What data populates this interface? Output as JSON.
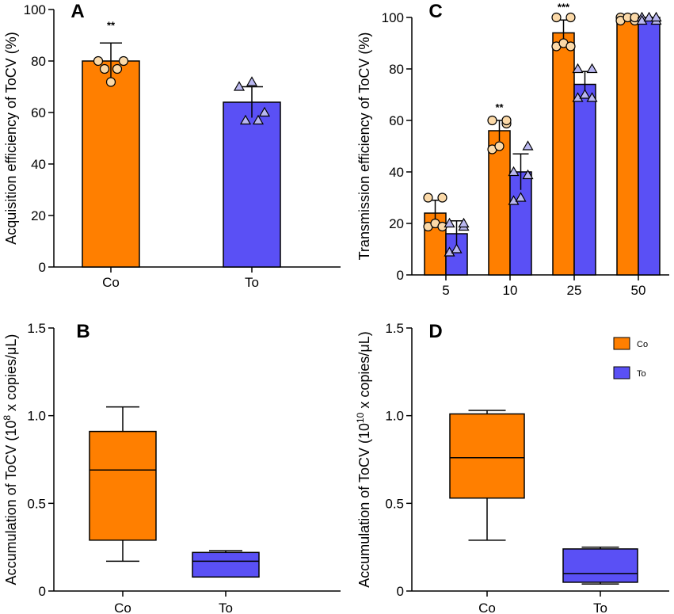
{
  "colors": {
    "co": "#ff7f00",
    "to": "#5a50f5",
    "co_point": "#fbd9a8",
    "to_point": "#b9b7f0"
  },
  "chart_data": [
    {
      "panel": "A",
      "type": "bar",
      "ylabel": "Acquisition efficiency of ToCV (%)",
      "ylim": [
        0,
        100
      ],
      "yticks": [
        "0",
        "20",
        "40",
        "60",
        "80",
        "100"
      ],
      "categories": [
        "Co",
        "To"
      ],
      "values": [
        80,
        64
      ],
      "errors": [
        7,
        6
      ],
      "points": [
        [
          70,
          80,
          80,
          80,
          80
        ],
        [
          70,
          70,
          60,
          60,
          60
        ]
      ],
      "annotations": [
        "**",
        ""
      ]
    },
    {
      "panel": "C",
      "type": "bar",
      "ylabel": "Transmission efficiency of ToCV (%)",
      "ylim": [
        0,
        100
      ],
      "yticks": [
        "0",
        "20",
        "40",
        "60",
        "80",
        "100"
      ],
      "categories": [
        "5",
        "10",
        "25",
        "50"
      ],
      "series": [
        {
          "name": "Co",
          "values": [
            24,
            56,
            94,
            100
          ],
          "errors": [
            5,
            4,
            5,
            0
          ],
          "points": [
            [
              30,
              20,
              20,
              20,
              30
            ],
            [
              60,
              50,
              50,
              60,
              60
            ],
            [
              100,
              90,
              90,
              90,
              100
            ],
            [
              100,
              100,
              100,
              100,
              100
            ]
          ]
        },
        {
          "name": "To",
          "values": [
            16,
            40,
            74,
            100
          ],
          "errors": [
            5,
            7,
            5,
            0
          ],
          "points": [
            [
              20,
              10,
              10,
              20,
              20
            ],
            [
              40,
              30,
              30,
              40,
              50
            ],
            [
              80,
              70,
              70,
              70,
              80
            ],
            [
              100,
              100,
              100,
              100,
              100
            ]
          ]
        }
      ],
      "annotations": [
        "",
        "**",
        "***",
        ""
      ]
    },
    {
      "panel": "B",
      "type": "box",
      "ylabel_prefix": "Accumulation of ToCV (10",
      "ylabel_exp": "8",
      "ylabel_suffix": " x copies/μL)",
      "ylim": [
        0,
        1.5
      ],
      "yticks": [
        "0",
        "0.5",
        "1.0",
        "1.5"
      ],
      "categories": [
        "Co",
        "To"
      ],
      "boxes": [
        {
          "min": 0.17,
          "q1": 0.29,
          "median": 0.69,
          "q3": 0.91,
          "max": 1.05
        },
        {
          "min": 0.08,
          "q1": 0.08,
          "median": 0.17,
          "q3": 0.22,
          "max": 0.23
        }
      ]
    },
    {
      "panel": "D",
      "type": "box",
      "ylabel_prefix": "Accumulation of ToCV (10",
      "ylabel_exp": "10",
      "ylabel_suffix": " x copies/μL)",
      "ylim": [
        0,
        1.5
      ],
      "yticks": [
        "0",
        "0.5",
        "1.0",
        "1.5"
      ],
      "categories": [
        "Co",
        "To"
      ],
      "boxes": [
        {
          "min": 0.29,
          "q1": 0.53,
          "median": 0.76,
          "q3": 1.01,
          "max": 1.03
        },
        {
          "min": 0.04,
          "q1": 0.05,
          "median": 0.1,
          "q3": 0.24,
          "max": 0.25
        }
      ],
      "legend": [
        "Co",
        "To"
      ]
    }
  ]
}
